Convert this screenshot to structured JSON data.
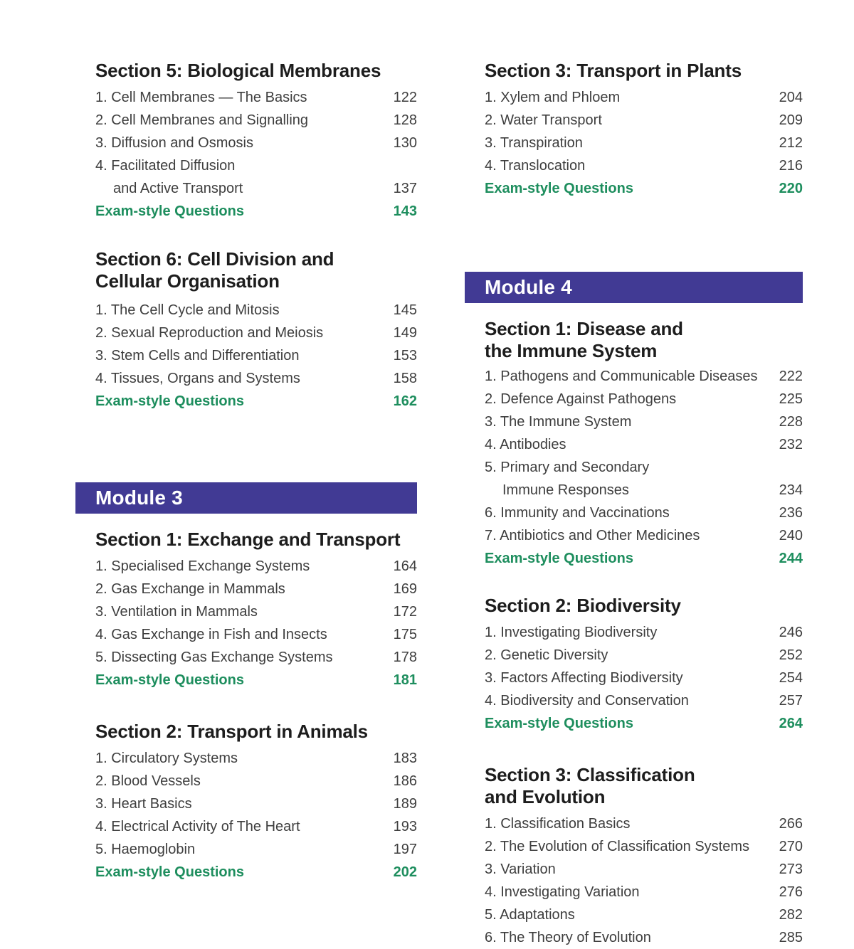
{
  "theme": {
    "module_banner_bg": "#413a94",
    "module_banner_text": "#ffffff",
    "exam_green": "#1e8e5e",
    "heading_ink": "#1d1d1d",
    "body_text": "#3e3e3e",
    "page_bg": "#ffffff"
  },
  "columns": [
    {
      "blocks": [
        {
          "id": "s5",
          "type": "section",
          "heading": [
            "Section 5: Biological Membranes"
          ],
          "items": [
            {
              "label": "1. Cell Membranes — The Basics",
              "page": "122"
            },
            {
              "label": "2. Cell Membranes and Signalling",
              "page": "128"
            },
            {
              "label": "3. Diffusion and Osmosis",
              "page": "130"
            },
            {
              "label": "4. Facilitated Diffusion",
              "label2": "and Active Transport",
              "page": "137"
            }
          ],
          "exam": {
            "label": "Exam-style Questions",
            "page": "143"
          }
        },
        {
          "id": "s6",
          "type": "section",
          "heading": [
            "Section 6: Cell Division and",
            "Cellular Organisation"
          ],
          "items": [
            {
              "label": "1. The Cell Cycle and Mitosis",
              "page": "145"
            },
            {
              "label": "2. Sexual Reproduction and Meiosis",
              "page": "149"
            },
            {
              "label": "3. Stem Cells and Differentiation",
              "page": "153"
            },
            {
              "label": "4. Tissues, Organs and Systems",
              "page": "158"
            }
          ],
          "exam": {
            "label": "Exam-style Questions",
            "page": "162"
          }
        },
        {
          "id": "module3",
          "type": "module",
          "label": "Module 3"
        },
        {
          "id": "m3s1",
          "type": "section",
          "heading": [
            "Section 1: Exchange and Transport"
          ],
          "items": [
            {
              "label": "1. Specialised Exchange Systems",
              "page": "164"
            },
            {
              "label": "2. Gas Exchange in Mammals",
              "page": "169"
            },
            {
              "label": "3. Ventilation in Mammals",
              "page": "172"
            },
            {
              "label": "4. Gas Exchange in Fish and Insects",
              "page": "175"
            },
            {
              "label": "5. Dissecting Gas Exchange Systems",
              "page": "178"
            }
          ],
          "exam": {
            "label": "Exam-style Questions",
            "page": "181"
          }
        },
        {
          "id": "m3s2",
          "type": "section",
          "heading": [
            "Section 2: Transport in Animals"
          ],
          "items": [
            {
              "label": "1. Circulatory Systems",
              "page": "183"
            },
            {
              "label": "2. Blood Vessels",
              "page": "186"
            },
            {
              "label": "3. Heart Basics",
              "page": "189"
            },
            {
              "label": "4. Electrical Activity of The Heart",
              "page": "193"
            },
            {
              "label": "5. Haemoglobin",
              "page": "197"
            }
          ],
          "exam": {
            "label": "Exam-style Questions",
            "page": "202"
          }
        }
      ]
    },
    {
      "blocks": [
        {
          "id": "m2s3",
          "type": "section",
          "heading": [
            "Section 3: Transport in Plants"
          ],
          "items": [
            {
              "label": "1. Xylem and Phloem",
              "page": "204"
            },
            {
              "label": "2. Water Transport",
              "page": "209"
            },
            {
              "label": "3. Transpiration",
              "page": "212"
            },
            {
              "label": "4. Translocation",
              "page": "216"
            }
          ],
          "exam": {
            "label": "Exam-style Questions",
            "page": "220"
          }
        },
        {
          "id": "module4",
          "type": "module",
          "label": "Module 4"
        },
        {
          "id": "m4s1",
          "type": "section",
          "heading": [
            "Section 1: Disease and",
            "the Immune System"
          ],
          "items": [
            {
              "label": "1. Pathogens and Communicable Diseases",
              "page": "222"
            },
            {
              "label": "2. Defence Against Pathogens",
              "page": "225"
            },
            {
              "label": "3. The Immune System",
              "page": "228"
            },
            {
              "label": "4. Antibodies",
              "page": "232"
            },
            {
              "label": "5. Primary and Secondary",
              "label2": "Immune Responses",
              "page": "234"
            },
            {
              "label": "6. Immunity and Vaccinations",
              "page": "236"
            },
            {
              "label": "7. Antibiotics and Other Medicines",
              "page": "240"
            }
          ],
          "exam": {
            "label": "Exam-style Questions",
            "page": "244"
          }
        },
        {
          "id": "m4s2",
          "type": "section",
          "heading": [
            "Section 2: Biodiversity"
          ],
          "items": [
            {
              "label": "1. Investigating Biodiversity",
              "page": "246"
            },
            {
              "label": "2. Genetic Diversity",
              "page": "252"
            },
            {
              "label": "3. Factors Affecting Biodiversity",
              "page": "254"
            },
            {
              "label": "4. Biodiversity and Conservation",
              "page": "257"
            }
          ],
          "exam": {
            "label": "Exam-style Questions",
            "page": "264"
          }
        },
        {
          "id": "m4s3",
          "type": "section",
          "heading": [
            "Section 3: Classification",
            "and Evolution"
          ],
          "items": [
            {
              "label": "1. Classification Basics",
              "page": "266"
            },
            {
              "label": "2. The Evolution of Classification Systems",
              "page": "270"
            },
            {
              "label": "3. Variation",
              "page": "273"
            },
            {
              "label": "4. Investigating Variation",
              "page": "276"
            },
            {
              "label": "5. Adaptations",
              "page": "282"
            },
            {
              "label": "6. The Theory of Evolution",
              "page": "285"
            }
          ],
          "exam": null
        }
      ]
    }
  ]
}
